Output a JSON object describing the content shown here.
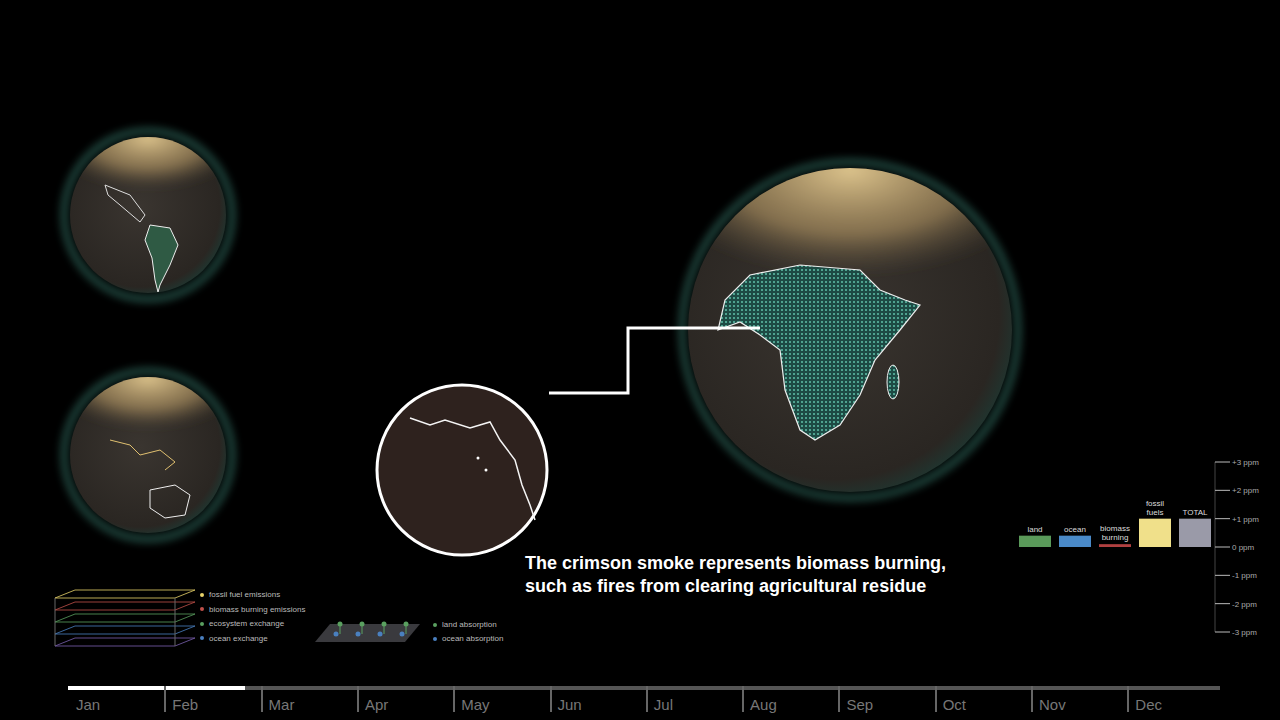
{
  "caption": [
    "The crimson smoke represents biomass burning,",
    "such as fires from clearing agricultural residue"
  ],
  "layer_legend": {
    "items": [
      {
        "label": "fossil fuel emissions",
        "color": "#e8d36a"
      },
      {
        "label": "biomass burning emissions",
        "color": "#c0504a"
      },
      {
        "label": "ecosystem exchange",
        "color": "#5aa060"
      },
      {
        "label": "ocean exchange",
        "color": "#4a80c0"
      }
    ]
  },
  "absorption_legend": {
    "items": [
      {
        "label": "land absorption",
        "color": "#5aa060"
      },
      {
        "label": "ocean absorption",
        "color": "#4a80c0"
      }
    ]
  },
  "timeline": {
    "months": [
      "Jan",
      "Feb",
      "Mar",
      "Apr",
      "May",
      "Jun",
      "Jul",
      "Aug",
      "Sep",
      "Oct",
      "Nov",
      "Dec"
    ],
    "progress_months": 1.84
  },
  "chart_data": {
    "type": "bar",
    "categories": [
      "land",
      "ocean",
      "biomass burning",
      "fossil fuels",
      "TOTAL"
    ],
    "values": [
      0.4,
      0.4,
      0.1,
      1.0,
      1.0
    ],
    "colors": [
      "#5a9a5a",
      "#4a8ac8",
      "#b04040",
      "#f0e08a",
      "#9a9aa8"
    ],
    "ylim": [
      -3,
      3
    ],
    "yticks": [
      {
        "value": 3,
        "label": "+3 ppm"
      },
      {
        "value": 2,
        "label": "+2 ppm"
      },
      {
        "value": 1,
        "label": "+1 ppm"
      },
      {
        "value": 0,
        "label": "0 ppm"
      },
      {
        "value": -1,
        "label": "-1 ppm"
      },
      {
        "value": -2,
        "label": "-2 ppm"
      },
      {
        "value": -3,
        "label": "-3 ppm"
      }
    ],
    "tick_labels": "y"
  }
}
